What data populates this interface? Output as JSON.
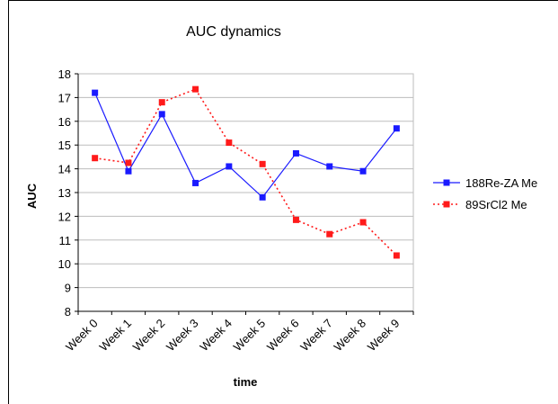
{
  "chart_data": {
    "type": "line",
    "title": "AUC dynamics",
    "xlabel": "time",
    "ylabel": "AUC",
    "ylim": [
      8,
      18
    ],
    "ytick_step": 1,
    "grid": "horizontal",
    "legend_position": "right",
    "categories": [
      "Week 0",
      "Week 1",
      "Week 2",
      "Week 3",
      "Week 4",
      "Week 5",
      "Week 6",
      "Week 7",
      "Week 8",
      "Week 9"
    ],
    "series": [
      {
        "name": "188Re-ZA Me",
        "color": "#1a1aff",
        "line_style": "solid",
        "marker": "square",
        "values": [
          17.2,
          13.9,
          16.3,
          13.4,
          14.1,
          12.8,
          14.65,
          14.1,
          13.9,
          15.7
        ]
      },
      {
        "name": "89SrCl2 Me",
        "color": "#ff1a1a",
        "line_style": "dotted",
        "marker": "square",
        "values": [
          14.45,
          14.25,
          16.8,
          17.35,
          15.1,
          14.2,
          11.85,
          11.25,
          11.75,
          10.35
        ]
      }
    ]
  }
}
